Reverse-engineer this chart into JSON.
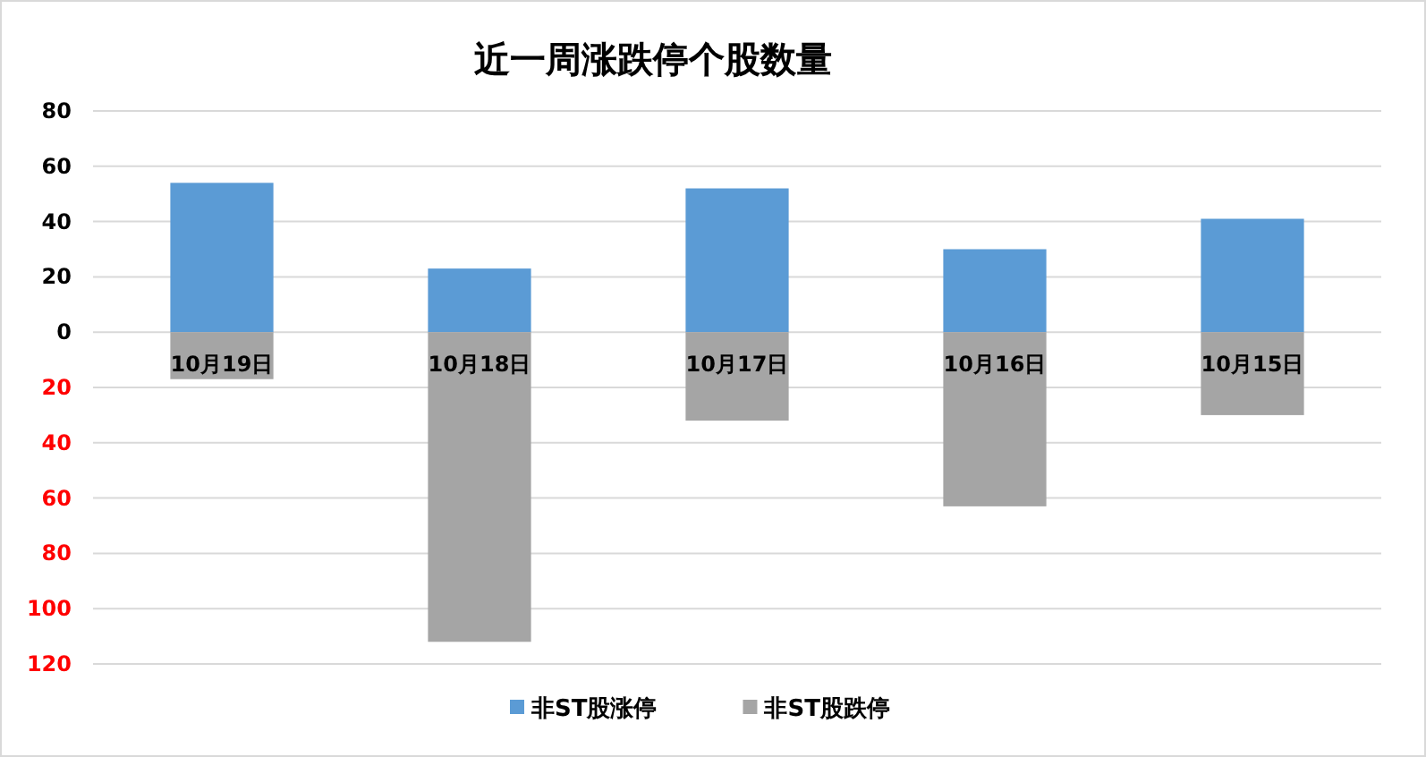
{
  "chart_data": {
    "type": "bar",
    "title": "近一周涨跌停个股数量",
    "categories": [
      "10月19日",
      "10月18日",
      "10月17日",
      "10月16日",
      "10月15日"
    ],
    "series": [
      {
        "name": "非ST股涨停",
        "color": "#5b9bd5",
        "values": [
          54,
          23,
          52,
          30,
          41
        ]
      },
      {
        "name": "非ST股跌停",
        "color": "#a5a5a5",
        "values": [
          -17,
          -112,
          -32,
          -63,
          -30
        ]
      }
    ],
    "stacked": true,
    "ylim": [
      -120,
      80
    ],
    "yticks": [
      80,
      60,
      40,
      20,
      0,
      {
        "value": -20,
        "label": "20"
      },
      {
        "value": -40,
        "label": "40"
      },
      {
        "value": -60,
        "label": "60"
      },
      {
        "value": -80,
        "label": "80"
      },
      {
        "value": -100,
        "label": "100"
      },
      {
        "value": -120,
        "label": "120"
      }
    ],
    "grid": "y",
    "legend": "bottom"
  }
}
